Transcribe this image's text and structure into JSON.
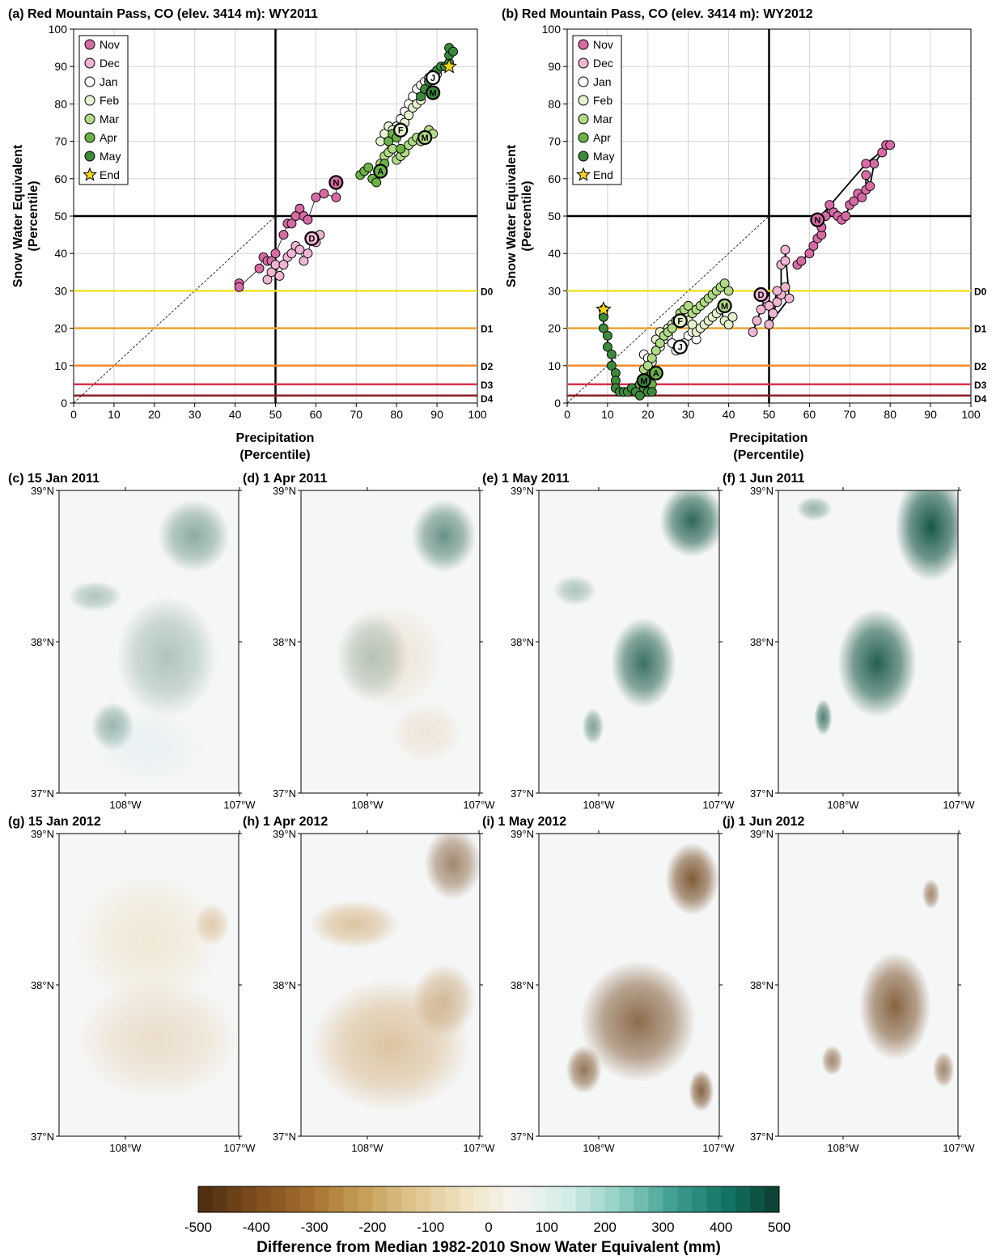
{
  "scatter_panels": [
    {
      "id": "a",
      "title": "(a) Red Mountain Pass, CO  (elev. 3414 m): WY2011",
      "xlabel_line1": "Precipitation",
      "xlabel_line2": "(Percentile)",
      "ylabel_line1": "Snow Water Equivalent",
      "ylabel_line2": "(Percentile)",
      "legend": [
        "Nov",
        "Dec",
        "Jan",
        "Feb",
        "Mar",
        "Apr",
        "May",
        "End"
      ],
      "month_markers": [
        {
          "label": "N",
          "x": 65,
          "y": 59,
          "month": "Nov"
        },
        {
          "label": "D",
          "x": 59,
          "y": 44,
          "month": "Dec"
        },
        {
          "label": "J",
          "x": 89,
          "y": 87,
          "month": "Jan"
        },
        {
          "label": "F",
          "x": 81,
          "y": 73,
          "month": "Feb"
        },
        {
          "label": "M",
          "x": 87,
          "y": 71,
          "month": "Mar"
        },
        {
          "label": "A",
          "x": 76,
          "y": 62,
          "month": "Apr"
        },
        {
          "label": "M",
          "x": 89,
          "y": 83,
          "month": "May"
        }
      ]
    },
    {
      "id": "b",
      "title": "(b) Red Mountain Pass, CO  (elev. 3414 m): WY2012",
      "xlabel_line1": "Precipitation",
      "xlabel_line2": "(Percentile)",
      "ylabel_line1": "Snow Water Equivalent",
      "ylabel_line2": "(Percentile)",
      "legend": [
        "Nov",
        "Dec",
        "Jan",
        "Feb",
        "Mar",
        "Apr",
        "May",
        "End"
      ],
      "month_markers": [
        {
          "label": "N",
          "x": 62,
          "y": 49,
          "month": "Nov"
        },
        {
          "label": "D",
          "x": 48,
          "y": 29,
          "month": "Dec"
        },
        {
          "label": "J",
          "x": 28,
          "y": 15,
          "month": "Jan"
        },
        {
          "label": "F",
          "x": 28,
          "y": 22,
          "month": "Feb"
        },
        {
          "label": "M",
          "x": 39,
          "y": 26,
          "month": "Mar"
        },
        {
          "label": "A",
          "x": 22,
          "y": 8,
          "month": "Apr"
        },
        {
          "label": "M",
          "x": 19,
          "y": 6,
          "month": "May"
        }
      ]
    }
  ],
  "drought_lines": [
    {
      "label": "D0",
      "value": 30,
      "color": "#f2e227"
    },
    {
      "label": "D1",
      "value": 20,
      "color": "#e8a532"
    },
    {
      "label": "D2",
      "value": 10,
      "color": "#ef8a2c"
    },
    {
      "label": "D3",
      "value": 5,
      "color": "#d6334b"
    },
    {
      "label": "D4",
      "value": 2,
      "color": "#8b1c26"
    }
  ],
  "month_colors": {
    "Nov": "#d76aa5",
    "Dec": "#f0b5d3",
    "Jan": "#ffffff",
    "Feb": "#e6f2cf",
    "Mar": "#b0da86",
    "Apr": "#6cb346",
    "May": "#3a8a3a",
    "End": "#f6d31b"
  },
  "map_panels": [
    {
      "id": "c",
      "title": "(c) 15 Jan 2011"
    },
    {
      "id": "d",
      "title": "(d) 1 Apr 2011"
    },
    {
      "id": "e",
      "title": "(e) 1 May 2011"
    },
    {
      "id": "f",
      "title": "(f) 1 Jun 2011"
    },
    {
      "id": "g",
      "title": "(g) 15 Jan 2012"
    },
    {
      "id": "h",
      "title": "(h) 1 Apr 2012"
    },
    {
      "id": "i",
      "title": "(i) 1 May 2012"
    },
    {
      "id": "j",
      "title": "(j) 1 Jun 2012"
    }
  ],
  "map_axes": {
    "lat_labels": [
      "39°N",
      "38°N",
      "37°N"
    ],
    "lon_labels": [
      "108°W",
      "107°W"
    ]
  },
  "colorbar": {
    "ticks": [
      "-500",
      "-400",
      "-300",
      "-200",
      "-100",
      "0",
      "100",
      "200",
      "300",
      "400",
      "500"
    ],
    "label": "Difference from Median 1982-2010 Snow Water Equivalent (mm)",
    "negative_color": "#6b3f14",
    "positive_color": "#0b4f3d"
  },
  "chart_data": [
    {
      "type": "scatter",
      "title": "(a) Red Mountain Pass, CO  (elev. 3414 m): WY2011",
      "xlabel": "Precipitation (Percentile)",
      "ylabel": "Snow Water Equivalent (Percentile)",
      "xlim": [
        0,
        100
      ],
      "ylim": [
        0,
        100
      ],
      "grid": true,
      "legend": "top-left",
      "series": [
        {
          "name": "Nov",
          "points": [
            [
              41,
              32
            ],
            [
              41,
              31
            ],
            [
              46,
              36
            ],
            [
              47,
              39
            ],
            [
              48,
              38
            ],
            [
              49,
              38
            ],
            [
              50,
              40
            ],
            [
              52,
              45
            ],
            [
              53,
              48
            ],
            [
              54,
              48
            ],
            [
              55,
              50
            ],
            [
              56,
              52
            ],
            [
              57,
              50
            ],
            [
              58,
              49
            ],
            [
              60,
              55
            ],
            [
              62,
              56
            ],
            [
              65,
              55
            ],
            [
              65,
              59
            ]
          ]
        },
        {
          "name": "Dec",
          "points": [
            [
              48,
              33
            ],
            [
              49,
              35
            ],
            [
              50,
              37
            ],
            [
              51,
              34
            ],
            [
              52,
              37
            ],
            [
              53,
              39
            ],
            [
              54,
              40
            ],
            [
              55,
              42
            ],
            [
              56,
              41
            ],
            [
              57,
              38
            ],
            [
              58,
              40
            ],
            [
              59,
              44
            ],
            [
              60,
              43
            ],
            [
              61,
              45
            ]
          ]
        },
        {
          "name": "Jan",
          "points": [
            [
              80,
              74
            ],
            [
              81,
              76
            ],
            [
              82,
              78
            ],
            [
              83,
              80
            ],
            [
              84,
              82
            ],
            [
              85,
              84
            ],
            [
              86,
              85
            ],
            [
              87,
              86
            ],
            [
              88,
              87
            ],
            [
              89,
              87
            ],
            [
              90,
              88
            ]
          ]
        },
        {
          "name": "Feb",
          "points": [
            [
              76,
              70
            ],
            [
              77,
              72
            ],
            [
              78,
              74
            ],
            [
              79,
              73
            ],
            [
              80,
              72
            ],
            [
              81,
              73
            ],
            [
              82,
              75
            ],
            [
              83,
              77
            ],
            [
              84,
              79
            ],
            [
              85,
              80
            ],
            [
              86,
              81
            ]
          ]
        },
        {
          "name": "Mar",
          "points": [
            [
              76,
              64
            ],
            [
              77,
              66
            ],
            [
              78,
              67
            ],
            [
              79,
              68
            ],
            [
              80,
              65
            ],
            [
              81,
              66
            ],
            [
              82,
              67
            ],
            [
              83,
              69
            ],
            [
              84,
              70
            ],
            [
              85,
              71
            ],
            [
              86,
              70
            ],
            [
              87,
              71
            ],
            [
              88,
              73
            ],
            [
              89,
              72
            ]
          ]
        },
        {
          "name": "Apr",
          "points": [
            [
              71,
              61
            ],
            [
              72,
              62
            ],
            [
              73,
              63
            ],
            [
              74,
              60
            ],
            [
              75,
              59
            ],
            [
              76,
              62
            ],
            [
              77,
              64
            ],
            [
              78,
              70
            ],
            [
              79,
              72
            ],
            [
              80,
              71
            ],
            [
              81,
              68
            ]
          ]
        },
        {
          "name": "May",
          "points": [
            [
              86,
              82
            ],
            [
              87,
              84
            ],
            [
              88,
              86
            ],
            [
              89,
              88
            ],
            [
              90,
              89
            ],
            [
              91,
              90
            ],
            [
              92,
              90
            ],
            [
              93,
              91
            ],
            [
              93,
              93
            ],
            [
              93,
              95
            ],
            [
              94,
              94
            ]
          ]
        },
        {
          "name": "End",
          "points": [
            [
              93,
              90
            ]
          ]
        }
      ]
    },
    {
      "type": "scatter",
      "title": "(b) Red Mountain Pass, CO  (elev. 3414 m): WY2012",
      "xlabel": "Precipitation (Percentile)",
      "ylabel": "Snow Water Equivalent (Percentile)",
      "xlim": [
        0,
        100
      ],
      "ylim": [
        0,
        100
      ],
      "grid": true,
      "legend": "top-left",
      "series": [
        {
          "name": "Nov",
          "points": [
            [
              57,
              37
            ],
            [
              58,
              38
            ],
            [
              60,
              40
            ],
            [
              61,
              42
            ],
            [
              62,
              44
            ],
            [
              63,
              45
            ],
            [
              63,
              47
            ],
            [
              64,
              50
            ],
            [
              65,
              53
            ],
            [
              66,
              51
            ],
            [
              67,
              50
            ],
            [
              68,
              49
            ],
            [
              69,
              50
            ],
            [
              70,
              53
            ],
            [
              71,
              54
            ],
            [
              72,
              56
            ],
            [
              73,
              55
            ],
            [
              74,
              57
            ],
            [
              74,
              61
            ],
            [
              75,
              58
            ],
            [
              76,
              64
            ],
            [
              78,
              67
            ],
            [
              79,
              69
            ],
            [
              80,
              69
            ],
            [
              74,
              64
            ],
            [
              62,
              49
            ]
          ]
        },
        {
          "name": "Dec",
          "points": [
            [
              46,
              19
            ],
            [
              47,
              22
            ],
            [
              48,
              25
            ],
            [
              49,
              28
            ],
            [
              50,
              26
            ],
            [
              51,
              24
            ],
            [
              52,
              27
            ],
            [
              53,
              29
            ],
            [
              53,
              37
            ],
            [
              54,
              38
            ],
            [
              54,
              41
            ],
            [
              55,
              28
            ],
            [
              50,
              21
            ],
            [
              52,
              30
            ],
            [
              54,
              31
            ]
          ]
        },
        {
          "name": "Jan",
          "points": [
            [
              19,
              13
            ],
            [
              20,
              12
            ],
            [
              21,
              11
            ],
            [
              22,
              14
            ],
            [
              23,
              15
            ],
            [
              24,
              17
            ],
            [
              25,
              18
            ],
            [
              26,
              16
            ],
            [
              27,
              14
            ],
            [
              28,
              15
            ],
            [
              29,
              16
            ],
            [
              30,
              18
            ],
            [
              31,
              19
            ],
            [
              32,
              17
            ]
          ]
        },
        {
          "name": "Feb",
          "points": [
            [
              22,
              17
            ],
            [
              23,
              19
            ],
            [
              24,
              18
            ],
            [
              25,
              20
            ],
            [
              26,
              21
            ],
            [
              27,
              22
            ],
            [
              28,
              23
            ],
            [
              29,
              24
            ],
            [
              30,
              22
            ],
            [
              31,
              21
            ],
            [
              32,
              19
            ],
            [
              33,
              20
            ],
            [
              34,
              21
            ],
            [
              35,
              22
            ],
            [
              36,
              23
            ],
            [
              37,
              24
            ],
            [
              38,
              25
            ],
            [
              39,
              22
            ],
            [
              40,
              21
            ],
            [
              41,
              23
            ]
          ]
        },
        {
          "name": "Mar",
          "points": [
            [
              19,
              9
            ],
            [
              20,
              10
            ],
            [
              21,
              12
            ],
            [
              22,
              14
            ],
            [
              23,
              16
            ],
            [
              24,
              18
            ],
            [
              25,
              19
            ],
            [
              26,
              20
            ],
            [
              27,
              22
            ],
            [
              28,
              24
            ],
            [
              29,
              25
            ],
            [
              30,
              26
            ],
            [
              31,
              24
            ],
            [
              32,
              25
            ],
            [
              33,
              26
            ],
            [
              34,
              27
            ],
            [
              35,
              28
            ],
            [
              36,
              29
            ],
            [
              37,
              30
            ],
            [
              38,
              31
            ],
            [
              39,
              32
            ],
            [
              40,
              30
            ]
          ]
        },
        {
          "name": "Apr",
          "points": [
            [
              17,
              4
            ],
            [
              18,
              5
            ],
            [
              19,
              6
            ],
            [
              20,
              7
            ],
            [
              21,
              8
            ],
            [
              22,
              8
            ],
            [
              20,
              4
            ],
            [
              21,
              5
            ],
            [
              19,
              3
            ]
          ]
        },
        {
          "name": "May",
          "points": [
            [
              9,
              25
            ],
            [
              9,
              23
            ],
            [
              9,
              20
            ],
            [
              10,
              18
            ],
            [
              10,
              15
            ],
            [
              11,
              13
            ],
            [
              11,
              10
            ],
            [
              12,
              8
            ],
            [
              12,
              6
            ],
            [
              12,
              4
            ],
            [
              13,
              3
            ],
            [
              14,
              3
            ],
            [
              15,
              3
            ],
            [
              16,
              4
            ],
            [
              17,
              3
            ],
            [
              18,
              2
            ],
            [
              19,
              4
            ],
            [
              20,
              3
            ],
            [
              21,
              3
            ]
          ]
        },
        {
          "name": "End",
          "points": [
            [
              9,
              25
            ]
          ]
        }
      ]
    }
  ]
}
